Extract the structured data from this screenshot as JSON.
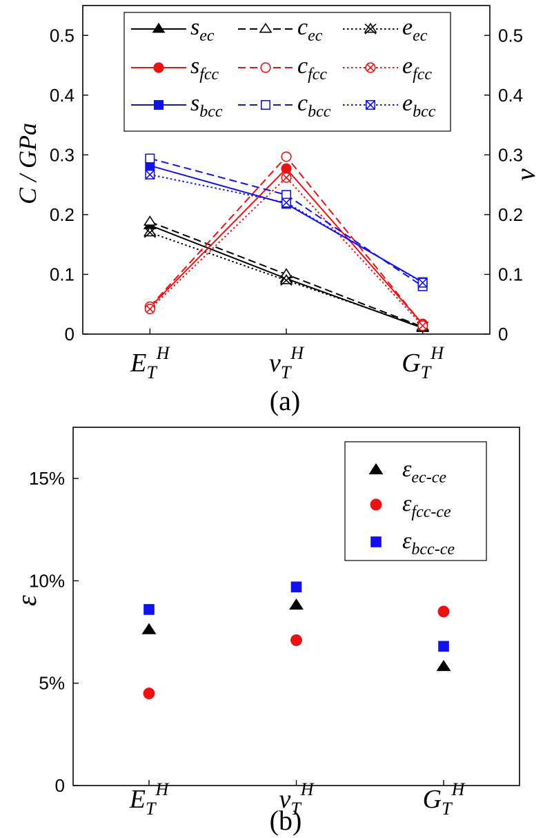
{
  "chart_data": [
    {
      "panel": "(a)",
      "type": "line",
      "categories": [
        {
          "base": "E",
          "sub": "T",
          "sup": "H"
        },
        {
          "base": "v",
          "sub": "T",
          "sup": "H"
        },
        {
          "base": "G",
          "sub": "T",
          "sup": "H"
        }
      ],
      "ylabel_left": "C / GPa",
      "ylabel_right": "v",
      "ylim": [
        0,
        0.55
      ],
      "yticks": [
        "0",
        "0.1",
        "0.2",
        "0.3",
        "0.4",
        "0.5"
      ],
      "series": [
        {
          "name": "s",
          "sub": "ec",
          "color": "#000000",
          "dash": "solid",
          "marker": "triangle-filled",
          "values": [
            0.182,
            0.093,
            0.01
          ]
        },
        {
          "name": "c",
          "sub": "ec",
          "color": "#000000",
          "dash": "dashed",
          "marker": "triangle-open",
          "values": [
            0.188,
            0.1,
            0.012
          ]
        },
        {
          "name": "e",
          "sub": "ec",
          "color": "#000000",
          "dash": "dotted",
          "marker": "x-triangle",
          "values": [
            0.17,
            0.09,
            0.012
          ]
        },
        {
          "name": "s",
          "sub": "fcc",
          "color": "#ee1111",
          "dash": "solid",
          "marker": "circle-filled",
          "values": [
            0.045,
            0.277,
            0.017
          ]
        },
        {
          "name": "c",
          "sub": "fcc",
          "color": "#ee1111",
          "dash": "dashed",
          "marker": "circle-open",
          "values": [
            0.046,
            0.297,
            0.016
          ]
        },
        {
          "name": "e",
          "sub": "fcc",
          "color": "#ee1111",
          "dash": "dotted",
          "marker": "x-circle",
          "values": [
            0.042,
            0.262,
            0.014
          ]
        },
        {
          "name": "s",
          "sub": "bcc",
          "color": "#1111ee",
          "dash": "solid",
          "marker": "square-filled",
          "values": [
            0.282,
            0.218,
            0.087
          ]
        },
        {
          "name": "c",
          "sub": "bcc",
          "color": "#1111ee",
          "dash": "dashed",
          "marker": "square-open",
          "values": [
            0.294,
            0.233,
            0.08
          ]
        },
        {
          "name": "e",
          "sub": "bcc",
          "color": "#1111ee",
          "dash": "dotted",
          "marker": "x-square",
          "values": [
            0.267,
            0.22,
            0.086
          ]
        }
      ]
    },
    {
      "panel": "(b)",
      "type": "scatter",
      "categories": [
        {
          "base": "E",
          "sub": "T",
          "sup": "H"
        },
        {
          "base": "v",
          "sub": "T",
          "sup": "H"
        },
        {
          "base": "G",
          "sub": "T",
          "sup": "H"
        }
      ],
      "ylabel": "ε",
      "ylim": [
        0,
        17.5
      ],
      "yticks": [
        "0",
        "5%",
        "10%",
        "15%"
      ],
      "series": [
        {
          "name": "ε",
          "sub": "ec-ce",
          "color": "#000000",
          "marker": "triangle-filled",
          "values": [
            7.6,
            8.8,
            5.8
          ]
        },
        {
          "name": "ε",
          "sub": "fcc-ce",
          "color": "#ee1111",
          "marker": "circle-filled",
          "values": [
            4.5,
            7.1,
            8.5
          ]
        },
        {
          "name": "ε",
          "sub": "bcc-ce",
          "color": "#1111ee",
          "marker": "square-filled",
          "values": [
            8.6,
            9.7,
            6.8
          ]
        }
      ]
    }
  ]
}
